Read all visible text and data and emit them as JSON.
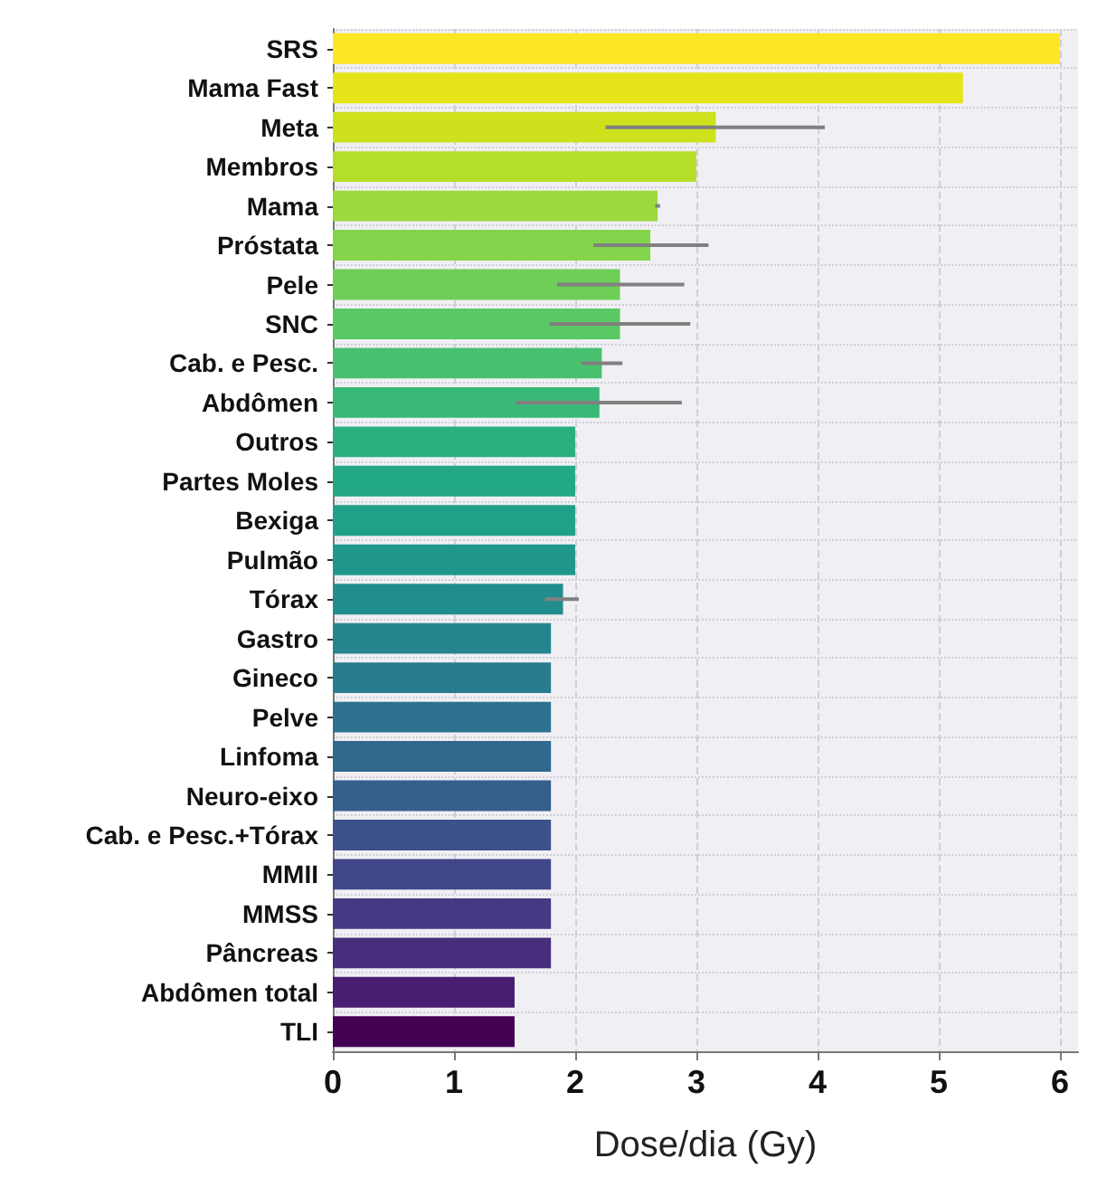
{
  "chart_data": {
    "type": "bar",
    "orientation": "horizontal",
    "xlabel": "Dose/dia (Gy)",
    "categories": [
      "SRS",
      "Mama Fast",
      "Meta",
      "Membros",
      "Mama",
      "Próstata",
      "Pele",
      "SNC",
      "Cab. e Pesc.",
      "Abdômen",
      "Outros",
      "Partes Moles",
      "Bexiga",
      "Pulmão",
      "Tórax",
      "Gastro",
      "Gineco",
      "Pelve",
      "Linfoma",
      "Neuro-eixo",
      "Cab. e Pesc.+Tórax",
      "MMII",
      "MMSS",
      "Pâncreas",
      "Abdômen total",
      "TLI"
    ],
    "values": [
      6.0,
      5.2,
      3.16,
      3.0,
      2.68,
      2.62,
      2.37,
      2.37,
      2.22,
      2.2,
      2.0,
      2.0,
      2.0,
      2.0,
      1.9,
      1.8,
      1.8,
      1.8,
      1.8,
      1.8,
      1.8,
      1.8,
      1.8,
      1.8,
      1.5,
      1.5
    ],
    "errors": [
      null,
      null,
      [
        2.25,
        4.06
      ],
      null,
      [
        2.66,
        2.7
      ],
      [
        2.15,
        3.1
      ],
      [
        1.85,
        2.9
      ],
      [
        1.79,
        2.95
      ],
      [
        2.05,
        2.39
      ],
      [
        1.51,
        2.88
      ],
      null,
      null,
      null,
      null,
      [
        1.75,
        2.03
      ],
      null,
      null,
      null,
      null,
      null,
      null,
      null,
      null,
      null,
      null,
      null
    ],
    "colors": [
      "#fde725",
      "#e5e419",
      "#cde11d",
      "#b5de2b",
      "#9bd93c",
      "#84d44b",
      "#6ece58",
      "#5ac864",
      "#48c16e",
      "#38b977",
      "#2ab07f",
      "#22a884",
      "#1fa088",
      "#1f988b",
      "#228d8d",
      "#25858e",
      "#297b8e",
      "#2c728e",
      "#31688e",
      "#355f8d",
      "#3b528b",
      "#404688",
      "#443983",
      "#472d7b",
      "#481f70",
      "#440154"
    ],
    "xlim": [
      0,
      6.15
    ],
    "xticks": [
      0,
      1,
      2,
      3,
      4,
      5,
      6
    ],
    "grid": true
  }
}
